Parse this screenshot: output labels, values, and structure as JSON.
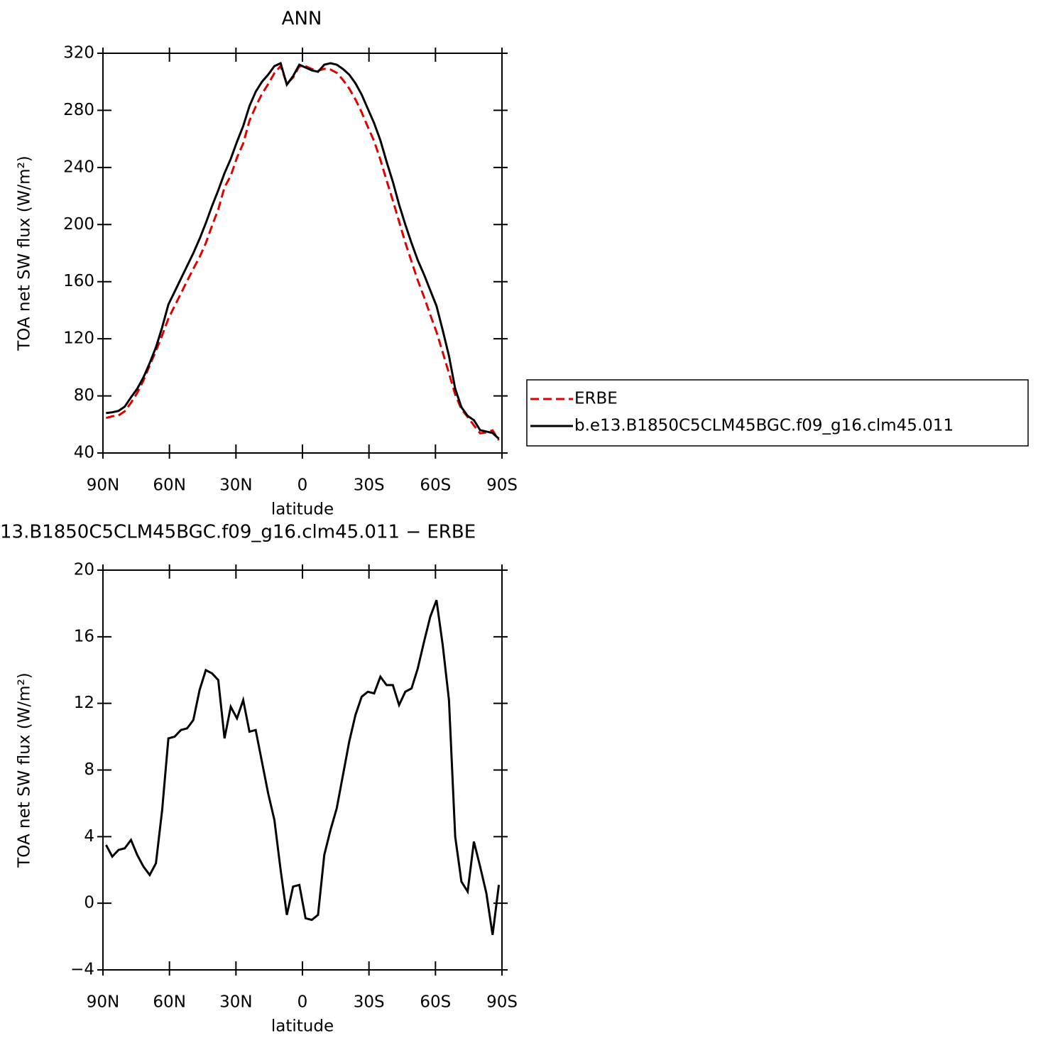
{
  "chart_data": [
    {
      "type": "line",
      "title": "ANN",
      "x_label": "latitude",
      "y_label": "TOA net SW flux (W/m²)",
      "x": [
        88.6,
        85.79,
        82.98,
        80.16,
        77.35,
        74.54,
        71.73,
        68.91,
        66.1,
        63.29,
        60.48,
        57.66,
        54.85,
        52.04,
        49.23,
        46.41,
        43.6,
        40.79,
        37.98,
        35.16,
        32.35,
        29.54,
        26.73,
        23.91,
        21.1,
        18.29,
        15.48,
        12.66,
        9.85,
        7.04,
        4.23,
        1.41,
        -1.4,
        -4.21,
        -7.02,
        -9.84,
        -12.65,
        -15.46,
        -18.27,
        -21.09,
        -23.9,
        -26.71,
        -29.52,
        -32.34,
        -35.15,
        -37.96,
        -40.77,
        -43.59,
        -46.4,
        -49.21,
        -52.02,
        -54.84,
        -57.65,
        -60.46,
        -63.27,
        -66.09,
        -68.9,
        -71.71,
        -74.52,
        -77.34,
        -80.15,
        -82.96,
        -85.77,
        -88.59
      ],
      "series": [
        {
          "name": "ERBE",
          "color": "#e00000",
          "dashed": true,
          "values": [
            64.5,
            65.7,
            66.3,
            69.2,
            75.2,
            82.1,
            90.8,
            101.3,
            111.6,
            122.4,
            134.1,
            143,
            151.6,
            160.5,
            169,
            177.2,
            187,
            199.2,
            210.6,
            226.1,
            234.2,
            246.9,
            256.8,
            272.7,
            282.6,
            291.5,
            298.4,
            306,
            311,
            298.7,
            303,
            310.9,
            310.9,
            309,
            307.7,
            309.1,
            308.6,
            306.3,
            301.3,
            295.3,
            287.7,
            278.6,
            268.3,
            258.4,
            245.4,
            230.9,
            216.9,
            202.1,
            187.3,
            174.1,
            160.9,
            149.3,
            136.8,
            124.8,
            110.5,
            95.8,
            81,
            70.7,
            65.3,
            59.3,
            53.8,
            54.4,
            55.9,
            48.9
          ]
        },
        {
          "name": "b.e13.B1850C5CLM45BGC.f09_g16.clm45.011",
          "color": "#000000",
          "dashed": false,
          "values": [
            68,
            68.5,
            69.5,
            72.5,
            79,
            85,
            93,
            103,
            114,
            128,
            144,
            153,
            162,
            171,
            180,
            190,
            201,
            213,
            224,
            236,
            246,
            258,
            269,
            283,
            293,
            300,
            305,
            311,
            313,
            298,
            304,
            312,
            310,
            308,
            307,
            312,
            313,
            312,
            309,
            305,
            299,
            291,
            281,
            271,
            259,
            244,
            230,
            214,
            200,
            187,
            175,
            165,
            154,
            143,
            126,
            108,
            85,
            72,
            66,
            63,
            56,
            55,
            54,
            50
          ]
        }
      ],
      "xlim": [
        90,
        -90
      ],
      "xticks": [
        {
          "value": 90,
          "label": "90N"
        },
        {
          "value": 60,
          "label": "60N"
        },
        {
          "value": 30,
          "label": "30N"
        },
        0,
        {
          "value": -30,
          "label": "30S"
        },
        {
          "value": -60,
          "label": "60S"
        },
        {
          "value": -90,
          "label": "90S"
        }
      ],
      "ylim": [
        40,
        320
      ],
      "yticks": [
        40,
        80,
        120,
        160,
        200,
        240,
        280,
        320
      ],
      "legend": "right"
    },
    {
      "type": "line",
      "title": "13.B1850C5CLM45BGC.f09_g16.clm45.011 − ERBE",
      "x_label": "latitude",
      "y_label": "TOA net SW flux (W/m²)",
      "x": [
        88.6,
        85.79,
        82.98,
        80.16,
        77.35,
        74.54,
        71.73,
        68.91,
        66.1,
        63.29,
        60.48,
        57.66,
        54.85,
        52.04,
        49.23,
        46.41,
        43.6,
        40.79,
        37.98,
        35.16,
        32.35,
        29.54,
        26.73,
        23.91,
        21.1,
        18.29,
        15.48,
        12.66,
        9.85,
        7.04,
        4.23,
        1.41,
        -1.4,
        -4.21,
        -7.02,
        -9.84,
        -12.65,
        -15.46,
        -18.27,
        -21.09,
        -23.9,
        -26.71,
        -29.52,
        -32.34,
        -35.15,
        -37.96,
        -40.77,
        -43.59,
        -46.4,
        -49.21,
        -52.02,
        -54.84,
        -57.65,
        -60.46,
        -63.27,
        -66.09,
        -68.9,
        -71.71,
        -74.52,
        -77.34,
        -80.15,
        -82.96,
        -85.77,
        -88.59
      ],
      "series": [
        {
          "color": "#000000",
          "dashed": false,
          "values": [
            3.5,
            2.8,
            3.2,
            3.3,
            3.8,
            2.9,
            2.2,
            1.7,
            2.4,
            5.6,
            9.9,
            10,
            10.4,
            10.5,
            11,
            12.8,
            14,
            13.8,
            13.4,
            9.9,
            11.8,
            11.1,
            12.2,
            10.3,
            10.4,
            8.5,
            6.6,
            5,
            2,
            -0.7,
            1,
            1.1,
            -0.9,
            -1,
            -0.7,
            2.9,
            4.4,
            5.7,
            7.7,
            9.7,
            11.3,
            12.4,
            12.7,
            12.6,
            13.6,
            13.1,
            13.1,
            11.9,
            12.7,
            12.9,
            14.1,
            15.7,
            17.2,
            18.2,
            15.5,
            12.2,
            4,
            1.3,
            0.7,
            3.7,
            2.2,
            0.6,
            -1.9,
            1.1
          ]
        }
      ],
      "xlim": [
        90,
        -90
      ],
      "xticks": [
        {
          "value": 90,
          "label": "90N"
        },
        {
          "value": 60,
          "label": "60N"
        },
        {
          "value": 30,
          "label": "30N"
        },
        0,
        {
          "value": -30,
          "label": "30S"
        },
        {
          "value": -60,
          "label": "60S"
        },
        {
          "value": -90,
          "label": "90S"
        }
      ],
      "ylim": [
        -4,
        20
      ],
      "yticks": [
        {
          "value": -4,
          "label": "−4"
        },
        0,
        4,
        8,
        12,
        16,
        20
      ]
    }
  ]
}
